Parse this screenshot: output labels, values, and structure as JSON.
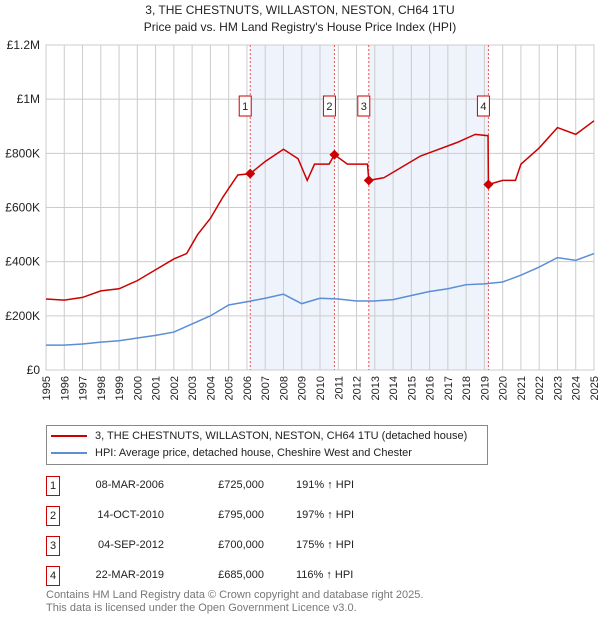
{
  "title_line1": "3, THE CHESTNUTS, WILLASTON, NESTON, CH64 1TU",
  "title_line2": "Price paid vs. HM Land Registry's House Price Index (HPI)",
  "chart_data": {
    "type": "line",
    "ylim": [
      0,
      1200000
    ],
    "xlim": [
      1995,
      2025
    ],
    "yticks": [
      {
        "v": 0,
        "label": "£0"
      },
      {
        "v": 200000,
        "label": "£200K"
      },
      {
        "v": 400000,
        "label": "£400K"
      },
      {
        "v": 600000,
        "label": "£600K"
      },
      {
        "v": 800000,
        "label": "£800K"
      },
      {
        "v": 1000000,
        "label": "£1M"
      },
      {
        "v": 1200000,
        "label": "£1.2M"
      }
    ],
    "xticks": [
      "1995",
      "1996",
      "1997",
      "1998",
      "1999",
      "2000",
      "2001",
      "2002",
      "2003",
      "2004",
      "2005",
      "2006",
      "2007",
      "2008",
      "2009",
      "2010",
      "2011",
      "2012",
      "2013",
      "2014",
      "2015",
      "2016",
      "2017",
      "2018",
      "2019",
      "2020",
      "2021",
      "2022",
      "2023",
      "2024",
      "2025"
    ],
    "shaded": [
      [
        2006.18,
        2010.79
      ],
      [
        2012.67,
        2019.22
      ]
    ],
    "series": [
      {
        "name": "3, THE CHESTNUTS, WILLASTON, NESTON, CH64 1TU (detached house)",
        "color": "#cc0000",
        "points": [
          [
            1995,
            262000
          ],
          [
            1996,
            258000
          ],
          [
            1997,
            268000
          ],
          [
            1998,
            292000
          ],
          [
            1999,
            300000
          ],
          [
            2000,
            330000
          ],
          [
            2001,
            370000
          ],
          [
            2002,
            410000
          ],
          [
            2002.7,
            430000
          ],
          [
            2003.3,
            500000
          ],
          [
            2004,
            560000
          ],
          [
            2004.7,
            640000
          ],
          [
            2005.5,
            720000
          ],
          [
            2006.18,
            725000
          ],
          [
            2007,
            770000
          ],
          [
            2008,
            815000
          ],
          [
            2008.8,
            780000
          ],
          [
            2009.3,
            700000
          ],
          [
            2009.7,
            760000
          ],
          [
            2010.5,
            760000
          ],
          [
            2010.79,
            795000
          ],
          [
            2011.5,
            760000
          ],
          [
            2012.6,
            760000
          ],
          [
            2012.67,
            700000
          ],
          [
            2013.5,
            710000
          ],
          [
            2014.5,
            750000
          ],
          [
            2015.5,
            790000
          ],
          [
            2016.5,
            815000
          ],
          [
            2017.5,
            840000
          ],
          [
            2018.5,
            870000
          ],
          [
            2019.2,
            865000
          ],
          [
            2019.22,
            685000
          ],
          [
            2020,
            700000
          ],
          [
            2020.7,
            700000
          ],
          [
            2021,
            760000
          ],
          [
            2022,
            820000
          ],
          [
            2023,
            895000
          ],
          [
            2024,
            870000
          ],
          [
            2025,
            920000
          ]
        ]
      },
      {
        "name": "HPI: Average price, detached house, Cheshire West and Chester",
        "color": "#5b8ed6",
        "points": [
          [
            1995,
            92000
          ],
          [
            1996,
            92000
          ],
          [
            1997,
            96000
          ],
          [
            1998,
            103000
          ],
          [
            1999,
            108000
          ],
          [
            2000,
            118000
          ],
          [
            2001,
            128000
          ],
          [
            2002,
            140000
          ],
          [
            2003,
            170000
          ],
          [
            2004,
            200000
          ],
          [
            2005,
            240000
          ],
          [
            2006,
            252000
          ],
          [
            2007,
            265000
          ],
          [
            2008,
            280000
          ],
          [
            2009,
            245000
          ],
          [
            2010,
            265000
          ],
          [
            2011,
            262000
          ],
          [
            2012,
            255000
          ],
          [
            2013,
            255000
          ],
          [
            2014,
            260000
          ],
          [
            2015,
            275000
          ],
          [
            2016,
            290000
          ],
          [
            2017,
            300000
          ],
          [
            2018,
            315000
          ],
          [
            2019,
            318000
          ],
          [
            2020,
            325000
          ],
          [
            2021,
            350000
          ],
          [
            2022,
            380000
          ],
          [
            2023,
            415000
          ],
          [
            2024,
            405000
          ],
          [
            2025,
            430000
          ]
        ]
      }
    ],
    "sales": [
      {
        "id": "1",
        "x": 2006.18,
        "value": 725000,
        "date": "08-MAR-2006",
        "price": "£725,000",
        "hpi": "191% ↑ HPI"
      },
      {
        "id": "2",
        "x": 2010.79,
        "value": 795000,
        "date": "14-OCT-2010",
        "price": "£795,000",
        "hpi": "197% ↑ HPI"
      },
      {
        "id": "3",
        "x": 2012.67,
        "value": 700000,
        "date": "04-SEP-2012",
        "price": "£700,000",
        "hpi": "175% ↑ HPI"
      },
      {
        "id": "4",
        "x": 2019.22,
        "value": 685000,
        "date": "22-MAR-2019",
        "price": "£685,000",
        "hpi": "116% ↑ HPI"
      }
    ]
  },
  "legend": {
    "red": "3, THE CHESTNUTS, WILLASTON, NESTON, CH64 1TU (detached house)",
    "blue": "HPI: Average price, detached house, Cheshire West and Chester"
  },
  "footer": {
    "line1": "Contains HM Land Registry data © Crown copyright and database right 2025.",
    "line2": "This data is licensed under the Open Government Licence v3.0."
  }
}
